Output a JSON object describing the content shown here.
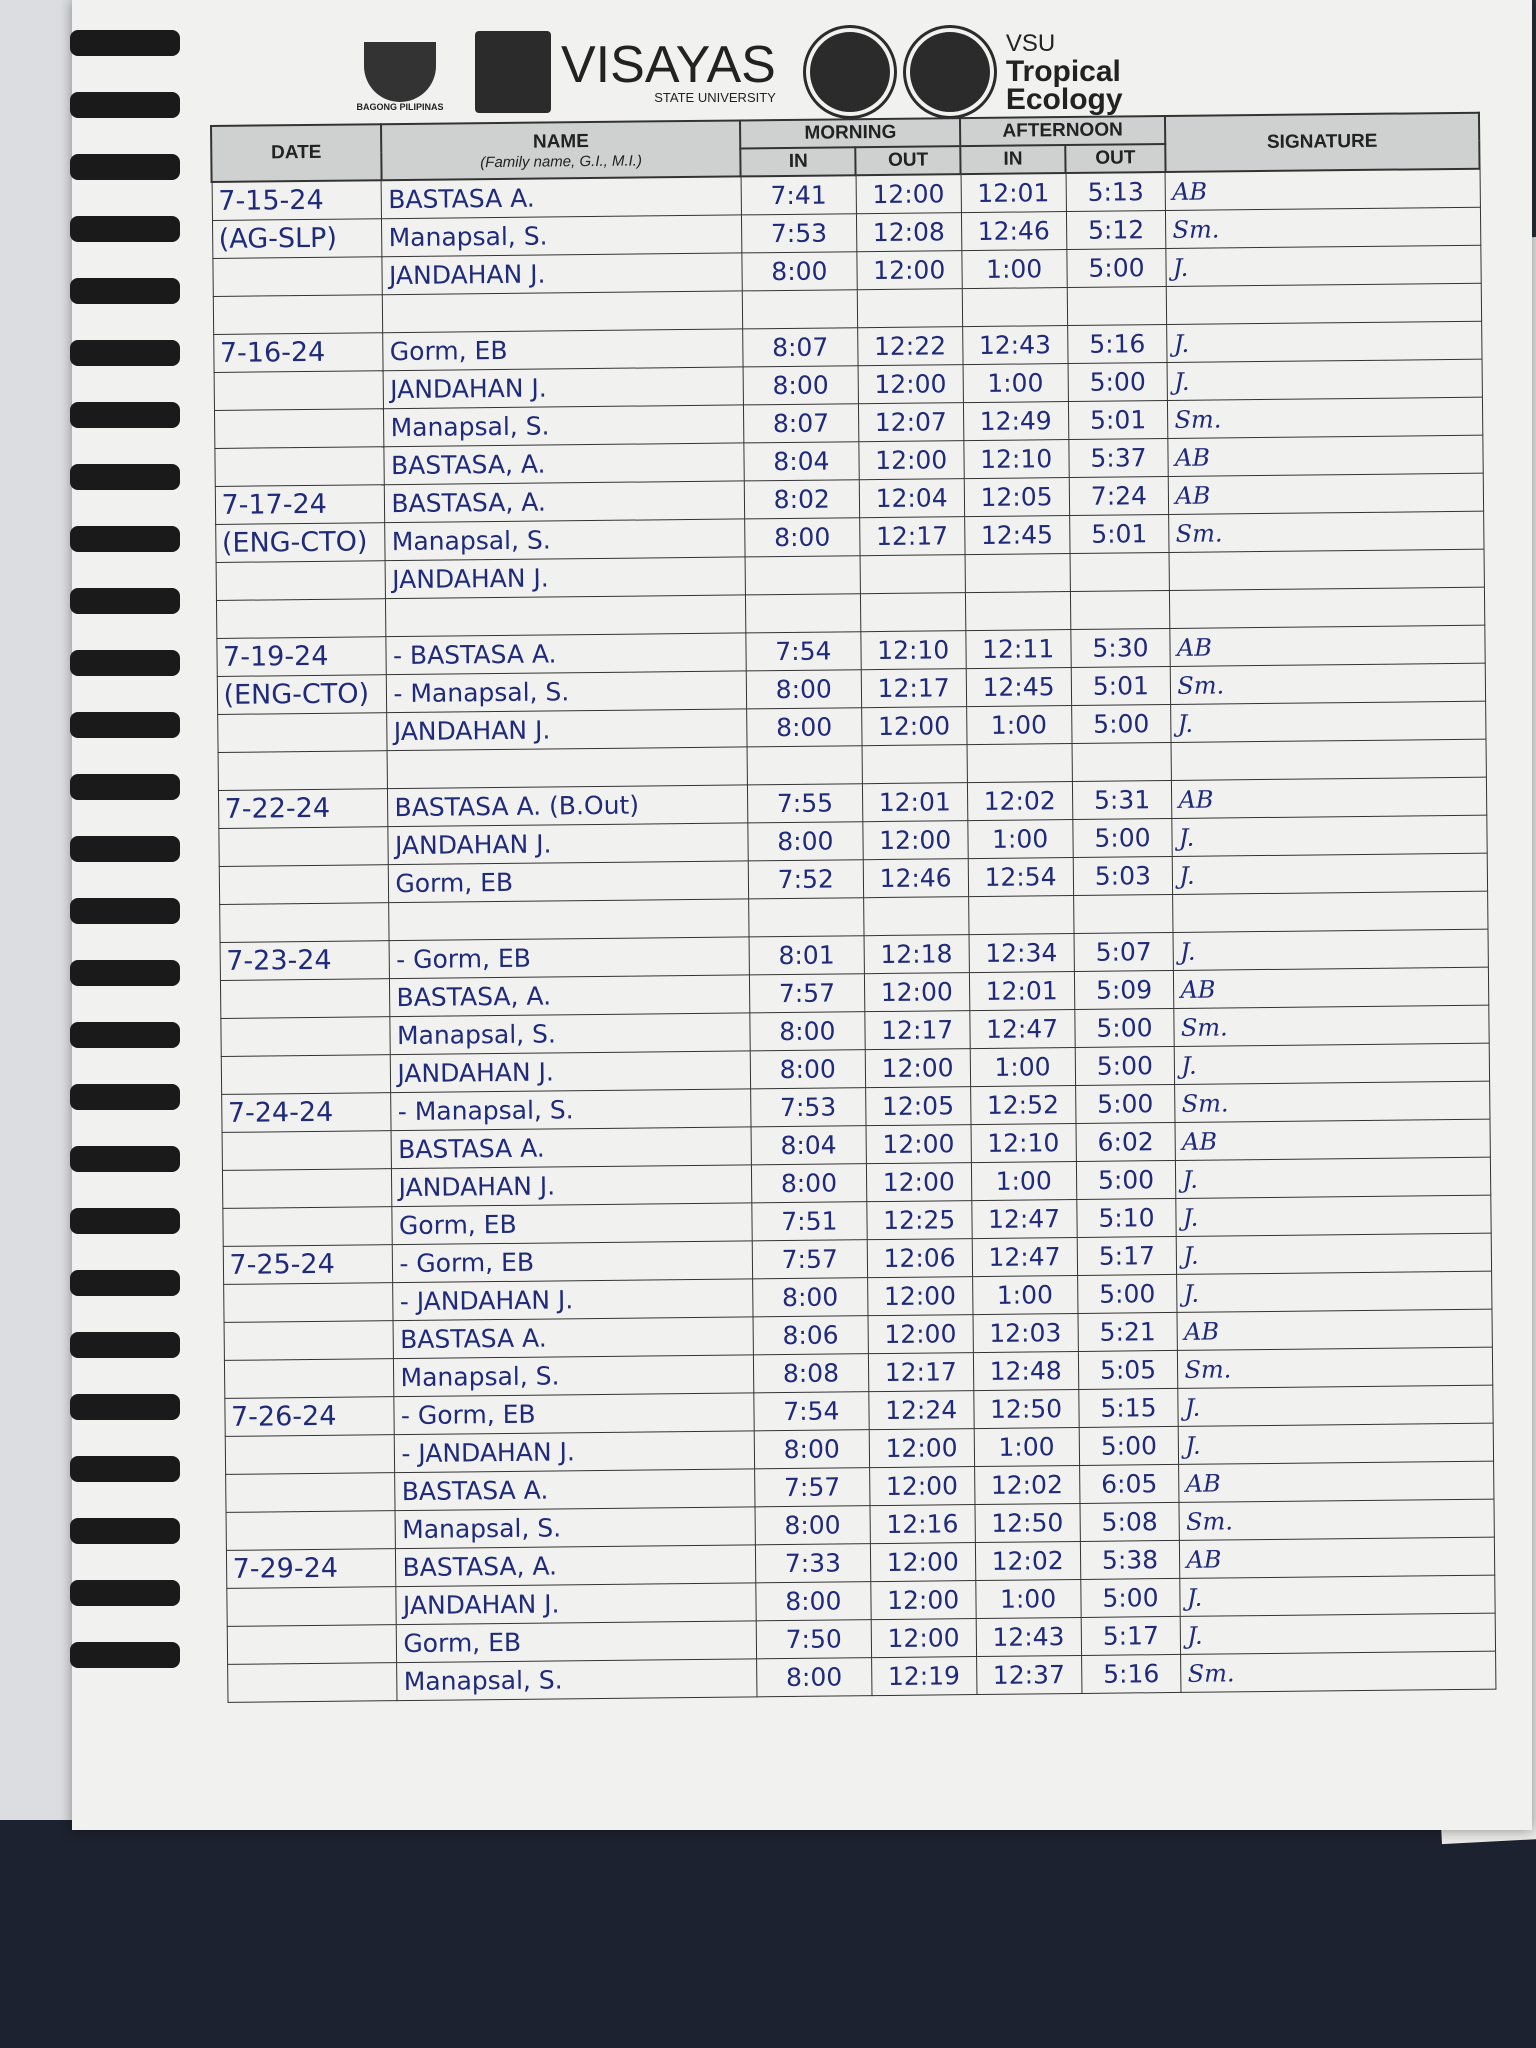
{
  "header": {
    "logo_left": "BAGONG PILIPINAS",
    "university": "VISAYAS",
    "university_sub": "STATE UNIVERSITY",
    "dept_line1": "VSU",
    "dept_line2": "Tropical",
    "dept_line3": "Ecology"
  },
  "columns": {
    "date": "DATE",
    "name": "NAME",
    "name_hint": "(Family name, G.I., M.I.)",
    "morning": "MORNING",
    "afternoon": "AFTERNOON",
    "in": "IN",
    "out": "OUT",
    "signature": "SIGNATURE"
  },
  "ink_color": "#1f2a7a",
  "rows": [
    [
      "7-15-24",
      "BASTASA A.",
      "7:41",
      "12:00",
      "12:01",
      "5:13",
      "AB"
    ],
    [
      "(AG-SLP)",
      "Manapsal, S.",
      "7:53",
      "12:08",
      "12:46",
      "5:12",
      "Sm."
    ],
    [
      "",
      "JANDAHAN J.",
      "8:00",
      "12:00",
      "1:00",
      "5:00",
      "J."
    ],
    [
      "",
      "",
      "",
      "",
      "",
      "",
      ""
    ],
    [
      "7-16-24",
      "Gorm, EB",
      "8:07",
      "12:22",
      "12:43",
      "5:16",
      "J."
    ],
    [
      "",
      "JANDAHAN J.",
      "8:00",
      "12:00",
      "1:00",
      "5:00",
      "J."
    ],
    [
      "",
      "Manapsal, S.",
      "8:07",
      "12:07",
      "12:49",
      "5:01",
      "Sm."
    ],
    [
      "",
      "BASTASA, A.",
      "8:04",
      "12:00",
      "12:10",
      "5:37",
      "AB"
    ],
    [
      "7-17-24",
      "BASTASA, A.",
      "8:02",
      "12:04",
      "12:05",
      "7:24",
      "AB"
    ],
    [
      "(ENG-CTO)",
      "Manapsal, S.",
      "8:00",
      "12:17",
      "12:45",
      "5:01",
      "Sm."
    ],
    [
      "",
      "JANDAHAN J.",
      "",
      "",
      "",
      "",
      ""
    ],
    [
      "",
      "",
      "",
      "",
      "",
      "",
      ""
    ],
    [
      "7-19-24",
      "- BASTASA A.",
      "7:54",
      "12:10",
      "12:11",
      "5:30",
      "AB"
    ],
    [
      "(ENG-CTO)",
      "- Manapsal, S.",
      "8:00",
      "12:17",
      "12:45",
      "5:01",
      "Sm."
    ],
    [
      "",
      "JANDAHAN J.",
      "8:00",
      "12:00",
      "1:00",
      "5:00",
      "J."
    ],
    [
      "",
      "",
      "",
      "",
      "",
      "",
      ""
    ],
    [
      "7-22-24",
      "BASTASA A. (B.Out)",
      "7:55",
      "12:01",
      "12:02",
      "5:31",
      "AB"
    ],
    [
      "",
      "JANDAHAN J.",
      "8:00",
      "12:00",
      "1:00",
      "5:00",
      "J."
    ],
    [
      "",
      "Gorm, EB",
      "7:52",
      "12:46",
      "12:54",
      "5:03",
      "J."
    ],
    [
      "",
      "",
      "",
      "",
      "",
      "",
      ""
    ],
    [
      "7-23-24",
      "- Gorm, EB",
      "8:01",
      "12:18",
      "12:34",
      "5:07",
      "J."
    ],
    [
      "",
      "BASTASA, A.",
      "7:57",
      "12:00",
      "12:01",
      "5:09",
      "AB"
    ],
    [
      "",
      "Manapsal, S.",
      "8:00",
      "12:17",
      "12:47",
      "5:00",
      "Sm."
    ],
    [
      "",
      "JANDAHAN J.",
      "8:00",
      "12:00",
      "1:00",
      "5:00",
      "J."
    ],
    [
      "7-24-24",
      "- Manapsal, S.",
      "7:53",
      "12:05",
      "12:52",
      "5:00",
      "Sm."
    ],
    [
      "",
      "BASTASA A.",
      "8:04",
      "12:00",
      "12:10",
      "6:02",
      "AB"
    ],
    [
      "",
      "JANDAHAN J.",
      "8:00",
      "12:00",
      "1:00",
      "5:00",
      "J."
    ],
    [
      "",
      "Gorm, EB",
      "7:51",
      "12:25",
      "12:47",
      "5:10",
      "J."
    ],
    [
      "7-25-24",
      "- Gorm, EB",
      "7:57",
      "12:06",
      "12:47",
      "5:17",
      "J."
    ],
    [
      "",
      "- JANDAHAN J.",
      "8:00",
      "12:00",
      "1:00",
      "5:00",
      "J."
    ],
    [
      "",
      "BASTASA A.",
      "8:06",
      "12:00",
      "12:03",
      "5:21",
      "AB"
    ],
    [
      "",
      "Manapsal, S.",
      "8:08",
      "12:17",
      "12:48",
      "5:05",
      "Sm."
    ],
    [
      "7-26-24",
      "- Gorm, EB",
      "7:54",
      "12:24",
      "12:50",
      "5:15",
      "J."
    ],
    [
      "",
      "- JANDAHAN J.",
      "8:00",
      "12:00",
      "1:00",
      "5:00",
      "J."
    ],
    [
      "",
      "BASTASA A.",
      "7:57",
      "12:00",
      "12:02",
      "6:05",
      "AB"
    ],
    [
      "",
      "Manapsal, S.",
      "8:00",
      "12:16",
      "12:50",
      "5:08",
      "Sm."
    ],
    [
      "7-29-24",
      "BASTASA, A.",
      "7:33",
      "12:00",
      "12:02",
      "5:38",
      "AB"
    ],
    [
      "",
      "JANDAHAN J.",
      "8:00",
      "12:00",
      "1:00",
      "5:00",
      "J."
    ],
    [
      "",
      "Gorm, EB",
      "7:50",
      "12:00",
      "12:43",
      "5:17",
      "J."
    ],
    [
      "",
      "Manapsal, S.",
      "8:00",
      "12:19",
      "12:37",
      "5:16",
      "Sm."
    ]
  ]
}
